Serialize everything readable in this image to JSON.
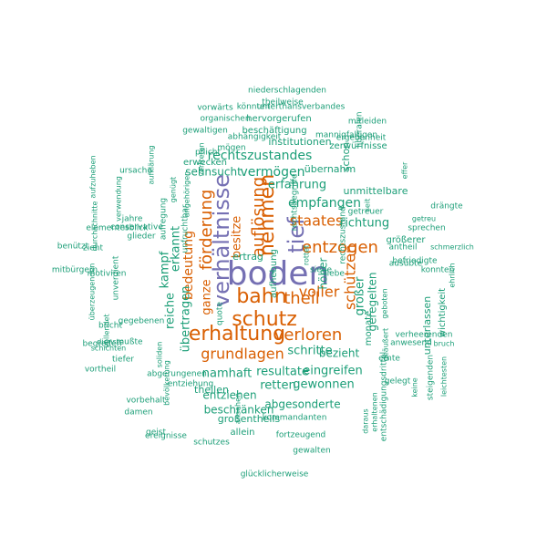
{
  "colors": {
    "purple": "#7570b3",
    "orange": "#d95f02",
    "teal": "#1b9e77"
  },
  "words": [
    {
      "text": "boden",
      "size": 36,
      "color": "purple",
      "rot": 0
    },
    {
      "text": "verhältnisse",
      "size": 24,
      "color": "purple",
      "rot": -90
    },
    {
      "text": "tief",
      "size": 24,
      "color": "purple",
      "rot": -90
    },
    {
      "text": "nehmen",
      "size": 22,
      "color": "orange",
      "rot": -90
    },
    {
      "text": "bahn",
      "size": 22,
      "color": "orange",
      "rot": 0
    },
    {
      "text": "schutz",
      "size": 22,
      "color": "orange",
      "rot": 0
    },
    {
      "text": "erhaltung",
      "size": 22,
      "color": "orange",
      "rot": 0
    },
    {
      "text": "auflösung",
      "size": 18,
      "color": "orange",
      "rot": -90
    },
    {
      "text": "entzogen",
      "size": 18,
      "color": "orange",
      "rot": 0
    },
    {
      "text": "förderung",
      "size": 18,
      "color": "orange",
      "rot": -90
    },
    {
      "text": "verloren",
      "size": 18,
      "color": "orange",
      "rot": 0
    },
    {
      "text": "theil",
      "size": 18,
      "color": "orange",
      "rot": 0
    },
    {
      "text": "staates",
      "size": 16,
      "color": "orange",
      "rot": 0
    },
    {
      "text": "voller",
      "size": 16,
      "color": "orange",
      "rot": 0
    },
    {
      "text": "grundlagen",
      "size": 16,
      "color": "orange",
      "rot": 0
    },
    {
      "text": "schützen",
      "size": 16,
      "color": "orange",
      "rot": -90
    },
    {
      "text": "bedeutung",
      "size": 14,
      "color": "orange",
      "rot": -90
    },
    {
      "text": "ganze",
      "size": 13,
      "color": "orange",
      "rot": -90
    },
    {
      "text": "besitze",
      "size": 13,
      "color": "orange",
      "rot": -90
    },
    {
      "text": "rechtszustandes",
      "size": 14,
      "color": "teal",
      "rot": 0
    },
    {
      "text": "vermögen",
      "size": 14,
      "color": "teal",
      "rot": 0
    },
    {
      "text": "erfahrung",
      "size": 13,
      "color": "teal",
      "rot": 0
    },
    {
      "text": "empfangen",
      "size": 14,
      "color": "teal",
      "rot": 0
    },
    {
      "text": "richtung",
      "size": 13,
      "color": "teal",
      "rot": 0
    },
    {
      "text": "sehnsucht",
      "size": 12,
      "color": "teal",
      "rot": 0
    },
    {
      "text": "übernahm",
      "size": 11,
      "color": "teal",
      "rot": 0
    },
    {
      "text": "unmittelbare",
      "size": 11,
      "color": "teal",
      "rot": 0
    },
    {
      "text": "kampf",
      "size": 13,
      "color": "teal",
      "rot": -90
    },
    {
      "text": "erkannt",
      "size": 13,
      "color": "teal",
      "rot": -90
    },
    {
      "text": "reiche",
      "size": 13,
      "color": "teal",
      "rot": -90
    },
    {
      "text": "übertragen",
      "size": 13,
      "color": "teal",
      "rot": -90
    },
    {
      "text": "ertrag",
      "size": 11,
      "color": "teal",
      "rot": 0
    },
    {
      "text": "höher",
      "size": 12,
      "color": "teal",
      "rot": -90
    },
    {
      "text": "großer",
      "size": 13,
      "color": "teal",
      "rot": -90
    },
    {
      "text": "geregelten",
      "size": 12,
      "color": "teal",
      "rot": -90
    },
    {
      "text": "schritte",
      "size": 13,
      "color": "teal",
      "rot": 0
    },
    {
      "text": "namhaft",
      "size": 13,
      "color": "teal",
      "rot": 0
    },
    {
      "text": "resultate",
      "size": 13,
      "color": "teal",
      "rot": 0
    },
    {
      "text": "eingreifen",
      "size": 13,
      "color": "teal",
      "rot": 0
    },
    {
      "text": "retten",
      "size": 13,
      "color": "teal",
      "rot": 0
    },
    {
      "text": "gewonnen",
      "size": 13,
      "color": "teal",
      "rot": 0
    },
    {
      "text": "entziehen",
      "size": 12,
      "color": "teal",
      "rot": 0
    },
    {
      "text": "beschränken",
      "size": 12,
      "color": "teal",
      "rot": 0
    },
    {
      "text": "abgesonderte",
      "size": 12,
      "color": "teal",
      "rot": 0
    },
    {
      "text": "großentheils",
      "size": 11,
      "color": "teal",
      "rot": 0
    },
    {
      "text": "theilen",
      "size": 11,
      "color": "teal",
      "rot": 0
    },
    {
      "text": "bezieht",
      "size": 12,
      "color": "teal",
      "rot": 0
    },
    {
      "text": "institutionen",
      "size": 11,
      "color": "teal",
      "rot": 0
    },
    {
      "text": "beschäftigung",
      "size": 10,
      "color": "teal",
      "rot": 0
    },
    {
      "text": "hervorgerufen",
      "size": 10,
      "color": "teal",
      "rot": 0
    },
    {
      "text": "unterthansverbandes",
      "size": 9,
      "color": "teal",
      "rot": 0
    },
    {
      "text": "könnten",
      "size": 9,
      "color": "teal",
      "rot": 0
    },
    {
      "text": "vorwärts",
      "size": 9,
      "color": "teal",
      "rot": 0
    },
    {
      "text": "theilweise",
      "size": 9,
      "color": "teal",
      "rot": 0
    },
    {
      "text": "niederschlagenden",
      "size": 9,
      "color": "teal",
      "rot": 0
    },
    {
      "text": "organischen",
      "size": 9,
      "color": "teal",
      "rot": 0
    },
    {
      "text": "gewaltigen",
      "size": 9,
      "color": "teal",
      "rot": 0
    },
    {
      "text": "abhängigkeit",
      "size": 9,
      "color": "teal",
      "rot": 0
    },
    {
      "text": "pflicht",
      "size": 9,
      "color": "teal",
      "rot": 0
    },
    {
      "text": "erwecken",
      "size": 10,
      "color": "teal",
      "rot": 0
    },
    {
      "text": "mögen",
      "size": 9,
      "color": "teal",
      "rot": 0
    },
    {
      "text": "monate",
      "size": 10,
      "color": "teal",
      "rot": -90
    },
    {
      "text": "schon",
      "size": 11,
      "color": "teal",
      "rot": -90
    },
    {
      "text": "zerwürfnisse",
      "size": 10,
      "color": "teal",
      "rot": 0
    },
    {
      "text": "ergebenheit",
      "size": 9,
      "color": "teal",
      "rot": 0
    },
    {
      "text": "mitleiden",
      "size": 9,
      "color": "teal",
      "rot": 0
    },
    {
      "text": "mannigfaltigen",
      "size": 9,
      "color": "teal",
      "rot": 0
    },
    {
      "text": "liberalen",
      "size": 9,
      "color": "teal",
      "rot": -90
    },
    {
      "text": "effer",
      "size": 8,
      "color": "teal",
      "rot": -90
    },
    {
      "text": "seit",
      "size": 8,
      "color": "teal",
      "rot": -90
    },
    {
      "text": "getreuer",
      "size": 9,
      "color": "teal",
      "rot": 0
    },
    {
      "text": "drängte",
      "size": 9,
      "color": "teal",
      "rot": 0
    },
    {
      "text": "getreu",
      "size": 8,
      "color": "teal",
      "rot": 0
    },
    {
      "text": "sprechen",
      "size": 9,
      "color": "teal",
      "rot": 0
    },
    {
      "text": "antheil",
      "size": 9,
      "color": "teal",
      "rot": 0
    },
    {
      "text": "schmerzlich",
      "size": 8,
      "color": "teal",
      "rot": 0
    },
    {
      "text": "größerer",
      "size": 10,
      "color": "teal",
      "rot": 0
    },
    {
      "text": "ausübte",
      "size": 9,
      "color": "teal",
      "rot": 0
    },
    {
      "text": "befriedigte",
      "size": 9,
      "color": "teal",
      "rot": 0
    },
    {
      "text": "konnten",
      "size": 9,
      "color": "teal",
      "rot": 0
    },
    {
      "text": "ehrlich",
      "size": 8,
      "color": "teal",
      "rot": -90
    },
    {
      "text": "geboten",
      "size": 8,
      "color": "teal",
      "rot": -90
    },
    {
      "text": "geäußert",
      "size": 8,
      "color": "teal",
      "rot": -90
    },
    {
      "text": "wichtigkeit",
      "size": 10,
      "color": "teal",
      "rot": -90
    },
    {
      "text": "unterlassen",
      "size": 11,
      "color": "teal",
      "rot": -90
    },
    {
      "text": "verheerenden",
      "size": 9,
      "color": "teal",
      "rot": 0
    },
    {
      "text": "anwesend",
      "size": 9,
      "color": "teal",
      "rot": 0
    },
    {
      "text": "bruch",
      "size": 8,
      "color": "teal",
      "rot": 0
    },
    {
      "text": "ernte",
      "size": 9,
      "color": "teal",
      "rot": 0
    },
    {
      "text": "gelegt",
      "size": 9,
      "color": "teal",
      "rot": 0
    },
    {
      "text": "keine",
      "size": 8,
      "color": "teal",
      "rot": -90
    },
    {
      "text": "steigenden",
      "size": 9,
      "color": "teal",
      "rot": -90
    },
    {
      "text": "leichtesten",
      "size": 8,
      "color": "teal",
      "rot": -90
    },
    {
      "text": "daraus",
      "size": 8,
      "color": "teal",
      "rot": -90
    },
    {
      "text": "erhaltenen",
      "size": 8,
      "color": "teal",
      "rot": -90
    },
    {
      "text": "entschädigungsdrittel",
      "size": 9,
      "color": "teal",
      "rot": -90
    },
    {
      "text": "rechtsbegriffe",
      "size": 9,
      "color": "teal",
      "rot": -90
    },
    {
      "text": "rechtszustand",
      "size": 9,
      "color": "teal",
      "rot": -90
    },
    {
      "text": "siege",
      "size": 9,
      "color": "teal",
      "rot": 0
    },
    {
      "text": "liebe",
      "size": 9,
      "color": "teal",
      "rot": 0
    },
    {
      "text": "quote",
      "size": 9,
      "color": "teal",
      "rot": -90
    },
    {
      "text": "ansehen",
      "size": 8,
      "color": "teal",
      "rot": -90
    },
    {
      "text": "allein",
      "size": 10,
      "color": "teal",
      "rot": 0
    },
    {
      "text": "geist",
      "size": 9,
      "color": "teal",
      "rot": 0
    },
    {
      "text": "schutzes",
      "size": 9,
      "color": "teal",
      "rot": 0
    },
    {
      "text": "kommandanten",
      "size": 9,
      "color": "teal",
      "rot": 0
    },
    {
      "text": "fortzeugend",
      "size": 9,
      "color": "teal",
      "rot": 0
    },
    {
      "text": "gewalten",
      "size": 9,
      "color": "teal",
      "rot": 0
    },
    {
      "text": "glücklicherweise",
      "size": 9,
      "color": "teal",
      "rot": 0
    },
    {
      "text": "abgerungenen",
      "size": 9,
      "color": "teal",
      "rot": 0
    },
    {
      "text": "bevölkerung",
      "size": 8,
      "color": "teal",
      "rot": -90
    },
    {
      "text": "vorbehalt",
      "size": 9,
      "color": "teal",
      "rot": 0
    },
    {
      "text": "damen",
      "size": 9,
      "color": "teal",
      "rot": 0
    },
    {
      "text": "ereignisse",
      "size": 9,
      "color": "teal",
      "rot": 0
    },
    {
      "text": "entziehung",
      "size": 9,
      "color": "teal",
      "rot": 0
    },
    {
      "text": "soliden",
      "size": 8,
      "color": "teal",
      "rot": -90
    },
    {
      "text": "vollendet",
      "size": 8,
      "color": "teal",
      "rot": -90
    },
    {
      "text": "bricht",
      "size": 9,
      "color": "teal",
      "rot": 0
    },
    {
      "text": "gegebenen",
      "size": 9,
      "color": "teal",
      "rot": 0
    },
    {
      "text": "schichten",
      "size": 8,
      "color": "teal",
      "rot": 0
    },
    {
      "text": "dienste",
      "size": 8,
      "color": "teal",
      "rot": 0
    },
    {
      "text": "tiefer",
      "size": 9,
      "color": "teal",
      "rot": 0
    },
    {
      "text": "vortheil",
      "size": 9,
      "color": "teal",
      "rot": 0
    },
    {
      "text": "mußte",
      "size": 9,
      "color": "teal",
      "rot": 0
    },
    {
      "text": "begreifen",
      "size": 9,
      "color": "teal",
      "rot": 0
    },
    {
      "text": "mitbürgern",
      "size": 9,
      "color": "teal",
      "rot": 0
    },
    {
      "text": "überzeugenden",
      "size": 8,
      "color": "teal",
      "rot": -90
    },
    {
      "text": "motiviren",
      "size": 9,
      "color": "teal",
      "rot": 0
    },
    {
      "text": "unverdient",
      "size": 9,
      "color": "teal",
      "rot": -90
    },
    {
      "text": "unfruchtbar",
      "size": 9,
      "color": "teal",
      "rot": -90
    },
    {
      "text": "aufregung",
      "size": 9,
      "color": "teal",
      "rot": -90
    },
    {
      "text": "jahre",
      "size": 9,
      "color": "teal",
      "rot": 0
    },
    {
      "text": "blick",
      "size": 9,
      "color": "teal",
      "rot": 0
    },
    {
      "text": "glieder",
      "size": 9,
      "color": "teal",
      "rot": 0
    },
    {
      "text": "elementes",
      "size": 9,
      "color": "teal",
      "rot": 0
    },
    {
      "text": "conservative",
      "size": 9,
      "color": "teal",
      "rot": 0
    },
    {
      "text": "benützt",
      "size": 9,
      "color": "teal",
      "rot": 0
    },
    {
      "text": "zieht",
      "size": 9,
      "color": "teal",
      "rot": 0
    },
    {
      "text": "durchschnitte",
      "size": 8,
      "color": "teal",
      "rot": -90
    },
    {
      "text": "verwendung",
      "size": 8,
      "color": "teal",
      "rot": -90
    },
    {
      "text": "aufzuheben",
      "size": 8,
      "color": "teal",
      "rot": -90
    },
    {
      "text": "ursache",
      "size": 9,
      "color": "teal",
      "rot": 0
    },
    {
      "text": "aufklärung",
      "size": 8,
      "color": "teal",
      "rot": -90
    },
    {
      "text": "genügt",
      "size": 8,
      "color": "teal",
      "rot": -90
    },
    {
      "text": "angehörigen",
      "size": 8,
      "color": "teal",
      "rot": -90
    },
    {
      "text": "vertreten",
      "size": 8,
      "color": "teal",
      "rot": -90
    },
    {
      "text": "rottet",
      "size": 8,
      "color": "teal",
      "rot": -90
    },
    {
      "text": "aufhebung",
      "size": 10,
      "color": "teal",
      "rot": -90
    },
    {
      "text": "f",
      "size": 8,
      "color": "teal",
      "rot": 0
    }
  ]
}
